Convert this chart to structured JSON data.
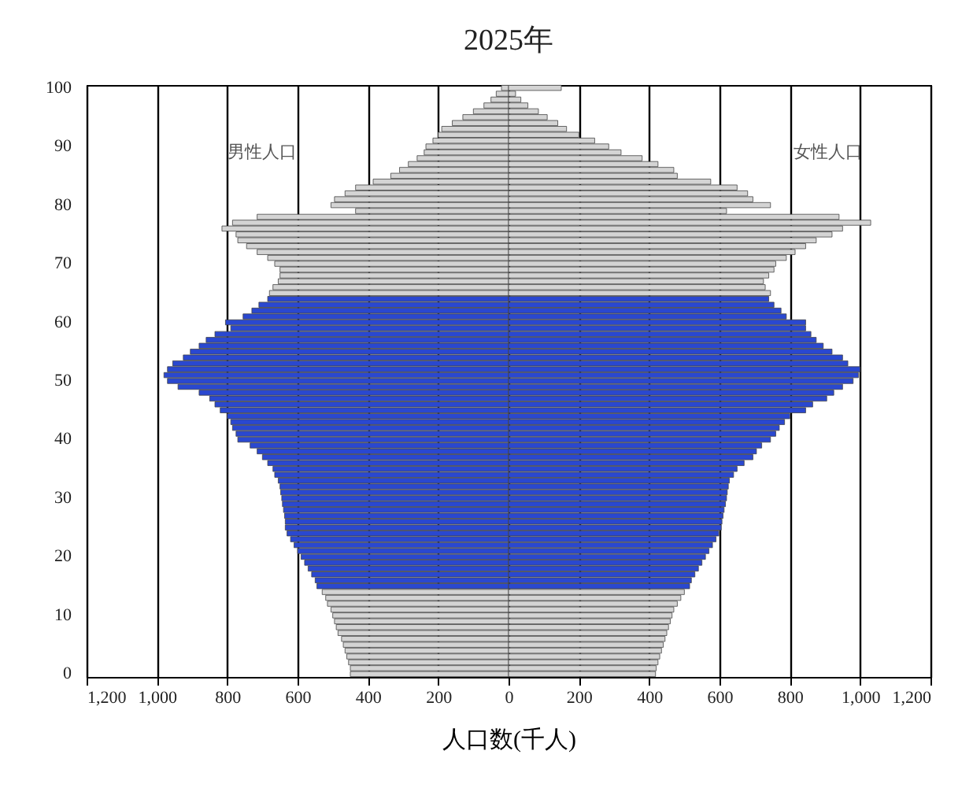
{
  "chart_data": {
    "type": "bar",
    "orientation": "horizontal",
    "title": "2025年",
    "xlabel": "人口数(千人)",
    "categories": [
      "100",
      null,
      null,
      null,
      null,
      null,
      null,
      null,
      null,
      null,
      "90",
      null,
      null,
      null,
      null,
      null,
      null,
      null,
      null,
      null,
      "80",
      null,
      null,
      null,
      null,
      null,
      null,
      null,
      null,
      null,
      "70",
      null,
      null,
      null,
      null,
      null,
      null,
      null,
      null,
      null,
      "60",
      null,
      null,
      null,
      null,
      null,
      null,
      null,
      null,
      null,
      "50",
      null,
      null,
      null,
      null,
      null,
      null,
      null,
      null,
      null,
      "40",
      null,
      null,
      null,
      null,
      null,
      null,
      null,
      null,
      null,
      "30",
      null,
      null,
      null,
      null,
      null,
      null,
      null,
      null,
      null,
      "20",
      null,
      null,
      null,
      null,
      null,
      null,
      null,
      null,
      null,
      "10",
      null,
      null,
      null,
      null,
      null,
      null,
      null,
      null,
      null,
      "0"
    ],
    "series": [
      {
        "name": "男性人口",
        "values": [
          -20,
          -35,
          -50,
          -70,
          -100,
          -130,
          -160,
          -190,
          -200,
          -215,
          -235,
          -240,
          -260,
          -285,
          -310,
          -335,
          -385,
          -435,
          -465,
          -495,
          -505,
          -435,
          -715,
          -785,
          -815,
          -775,
          -770,
          -745,
          -715,
          -685,
          -665,
          -650,
          -650,
          -655,
          -670,
          -680,
          -685,
          -710,
          -730,
          -755,
          -805,
          -790,
          -835,
          -860,
          -880,
          -905,
          -925,
          -955,
          -970,
          -980,
          -970,
          -940,
          -880,
          -850,
          -835,
          -820,
          -800,
          -790,
          -785,
          -775,
          -770,
          -735,
          -715,
          -700,
          -685,
          -670,
          -665,
          -655,
          -650,
          -648,
          -645,
          -643,
          -640,
          -637,
          -635,
          -635,
          -630,
          -620,
          -610,
          -600,
          -590,
          -580,
          -570,
          -560,
          -550,
          -545,
          -530,
          -520,
          -515,
          -505,
          -500,
          -495,
          -490,
          -485,
          -475,
          -470,
          -465,
          -460,
          -455,
          -450,
          -450
        ],
        "colors": [
          "#d4d4d4",
          "#d4d4d4",
          "#d4d4d4",
          "#d4d4d4",
          "#d4d4d4",
          "#d4d4d4",
          "#d4d4d4",
          "#d4d4d4",
          "#d4d4d4",
          "#d4d4d4",
          "#d4d4d4",
          "#d4d4d4",
          "#d4d4d4",
          "#d4d4d4",
          "#d4d4d4",
          "#d4d4d4",
          "#d4d4d4",
          "#d4d4d4",
          "#d4d4d4",
          "#d4d4d4",
          "#d4d4d4",
          "#d4d4d4",
          "#d4d4d4",
          "#d4d4d4",
          "#d4d4d4",
          "#d4d4d4",
          "#d4d4d4",
          "#d4d4d4",
          "#d4d4d4",
          "#d4d4d4",
          "#d4d4d4",
          "#d4d4d4",
          "#d4d4d4",
          "#d4d4d4",
          "#d4d4d4",
          "#d4d4d4",
          "#2a48d0",
          "#2a48d0",
          "#2a48d0",
          "#2a48d0",
          "#2a48d0",
          "#2a48d0",
          "#2a48d0",
          "#2a48d0",
          "#2a48d0",
          "#2a48d0",
          "#2a48d0",
          "#2a48d0",
          "#2a48d0",
          "#2a48d0",
          "#2a48d0",
          "#2a48d0",
          "#2a48d0",
          "#2a48d0",
          "#2a48d0",
          "#2a48d0",
          "#2a48d0",
          "#2a48d0",
          "#2a48d0",
          "#2a48d0",
          "#2a48d0",
          "#2a48d0",
          "#2a48d0",
          "#2a48d0",
          "#2a48d0",
          "#2a48d0",
          "#2a48d0",
          "#2a48d0",
          "#2a48d0",
          "#2a48d0",
          "#2a48d0",
          "#2a48d0",
          "#2a48d0",
          "#2a48d0",
          "#2a48d0",
          "#2a48d0",
          "#2a48d0",
          "#2a48d0",
          "#2a48d0",
          "#2a48d0",
          "#2a48d0",
          "#2a48d0",
          "#2a48d0",
          "#2a48d0",
          "#2a48d0",
          "#2a48d0",
          "#d4d4d4",
          "#d4d4d4",
          "#d4d4d4",
          "#d4d4d4",
          "#d4d4d4",
          "#d4d4d4",
          "#d4d4d4",
          "#d4d4d4",
          "#d4d4d4",
          "#d4d4d4",
          "#d4d4d4",
          "#d4d4d4",
          "#d4d4d4",
          "#d4d4d4",
          "#d4d4d4"
        ]
      },
      {
        "name": "女性人口",
        "values": [
          150,
          20,
          35,
          55,
          85,
          110,
          140,
          165,
          200,
          245,
          285,
          320,
          380,
          425,
          470,
          480,
          575,
          650,
          680,
          695,
          745,
          620,
          940,
          1030,
          950,
          920,
          875,
          845,
          815,
          790,
          760,
          755,
          740,
          725,
          730,
          745,
          740,
          755,
          775,
          790,
          845,
          845,
          860,
          875,
          895,
          920,
          950,
          965,
          1000,
          995,
          980,
          950,
          925,
          905,
          865,
          845,
          800,
          785,
          770,
          760,
          745,
          720,
          705,
          695,
          670,
          650,
          640,
          628,
          625,
          622,
          620,
          617,
          613,
          610,
          607,
          605,
          598,
          590,
          580,
          570,
          560,
          550,
          540,
          530,
          520,
          515,
          500,
          490,
          480,
          470,
          465,
          460,
          455,
          450,
          445,
          440,
          435,
          430,
          425,
          420,
          418
        ],
        "colors": [
          "#d4d4d4",
          "#d4d4d4",
          "#d4d4d4",
          "#d4d4d4",
          "#d4d4d4",
          "#d4d4d4",
          "#d4d4d4",
          "#d4d4d4",
          "#d4d4d4",
          "#d4d4d4",
          "#d4d4d4",
          "#d4d4d4",
          "#d4d4d4",
          "#d4d4d4",
          "#d4d4d4",
          "#d4d4d4",
          "#d4d4d4",
          "#d4d4d4",
          "#d4d4d4",
          "#d4d4d4",
          "#d4d4d4",
          "#d4d4d4",
          "#d4d4d4",
          "#d4d4d4",
          "#d4d4d4",
          "#d4d4d4",
          "#d4d4d4",
          "#d4d4d4",
          "#d4d4d4",
          "#d4d4d4",
          "#d4d4d4",
          "#d4d4d4",
          "#d4d4d4",
          "#d4d4d4",
          "#d4d4d4",
          "#d4d4d4",
          "#2a48d0",
          "#2a48d0",
          "#2a48d0",
          "#2a48d0",
          "#2a48d0",
          "#2a48d0",
          "#2a48d0",
          "#2a48d0",
          "#2a48d0",
          "#2a48d0",
          "#2a48d0",
          "#2a48d0",
          "#2a48d0",
          "#2a48d0",
          "#2a48d0",
          "#2a48d0",
          "#2a48d0",
          "#2a48d0",
          "#2a48d0",
          "#2a48d0",
          "#2a48d0",
          "#2a48d0",
          "#2a48d0",
          "#2a48d0",
          "#2a48d0",
          "#2a48d0",
          "#2a48d0",
          "#2a48d0",
          "#2a48d0",
          "#2a48d0",
          "#2a48d0",
          "#2a48d0",
          "#2a48d0",
          "#2a48d0",
          "#2a48d0",
          "#2a48d0",
          "#2a48d0",
          "#2a48d0",
          "#2a48d0",
          "#2a48d0",
          "#2a48d0",
          "#2a48d0",
          "#2a48d0",
          "#2a48d0",
          "#2a48d0",
          "#2a48d0",
          "#2a48d0",
          "#2a48d0",
          "#2a48d0",
          "#2a48d0",
          "#d4d4d4",
          "#d4d4d4",
          "#d4d4d4",
          "#d4d4d4",
          "#d4d4d4",
          "#d4d4d4",
          "#d4d4d4",
          "#d4d4d4",
          "#d4d4d4",
          "#d4d4d4",
          "#d4d4d4",
          "#d4d4d4",
          "#d4d4d4",
          "#d4d4d4",
          "#d4d4d4"
        ]
      }
    ],
    "xlim": [
      -1200,
      1200
    ],
    "xticks": [
      {
        "value": -1200,
        "label": "1,200"
      },
      {
        "value": -1000,
        "label": "1,000"
      },
      {
        "value": -800,
        "label": "800"
      },
      {
        "value": -600,
        "label": "600"
      },
      {
        "value": -400,
        "label": "400"
      },
      {
        "value": -200,
        "label": "200"
      },
      0,
      200,
      400,
      600,
      800,
      {
        "value": 1000,
        "label": "1,000"
      },
      {
        "value": 1200,
        "label": "1,200"
      }
    ],
    "grid": "x",
    "stacked": true
  }
}
